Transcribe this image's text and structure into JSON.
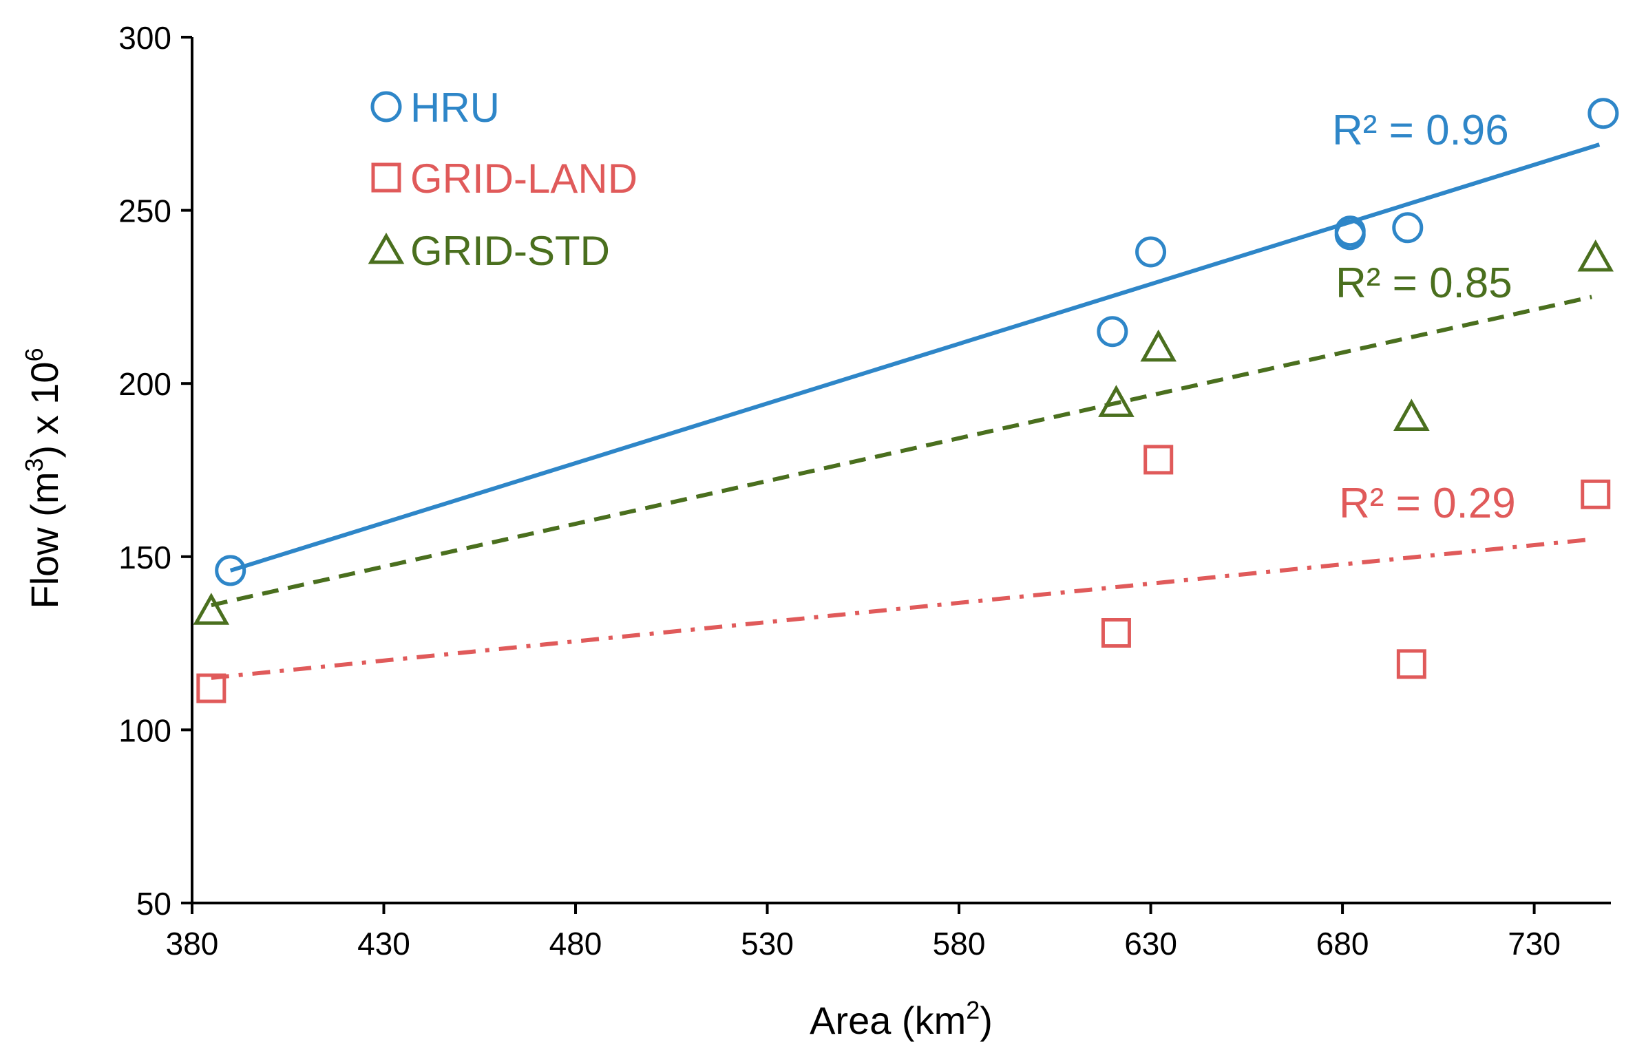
{
  "chart_data": {
    "type": "scatter",
    "xlabel": "Area (km",
    "xlabel_sup": "2",
    "xlabel_end": ")",
    "ylabel": "Flow (m",
    "ylabel_sup1": "3",
    "ylabel_mid": ") x 10",
    "ylabel_sup2": "6",
    "xlim": [
      380,
      750
    ],
    "ylim": [
      50,
      300
    ],
    "xticks": [
      380,
      430,
      480,
      530,
      580,
      630,
      680,
      730
    ],
    "yticks": [
      50,
      100,
      150,
      200,
      250,
      300
    ],
    "legend_position": "top-left",
    "series": [
      {
        "name": "HRU",
        "marker": "circle",
        "color": "#2E86C8",
        "line_style": "solid",
        "points": [
          [
            390,
            146
          ],
          [
            620,
            215
          ],
          [
            630,
            238
          ],
          [
            682,
            244
          ],
          [
            682,
            243
          ],
          [
            697,
            245
          ],
          [
            748,
            278
          ]
        ],
        "trend": {
          "x": [
            390,
            747
          ],
          "y": [
            146,
            269
          ]
        },
        "r2_label": "R² = 0.96"
      },
      {
        "name": "GRID-LAND",
        "marker": "square",
        "color": "#E05A5A",
        "line_style": "dashdot",
        "points": [
          [
            385,
            112
          ],
          [
            621,
            128
          ],
          [
            632,
            178
          ],
          [
            698,
            119
          ],
          [
            746,
            168
          ]
        ],
        "trend": {
          "x": [
            385,
            745
          ],
          "y": [
            115,
            155
          ]
        },
        "r2_label": "R² = 0.29"
      },
      {
        "name": "GRID-STD",
        "marker": "triangle",
        "color": "#4A6F1E",
        "line_style": "dashed",
        "points": [
          [
            385,
            134
          ],
          [
            621,
            194
          ],
          [
            632,
            210
          ],
          [
            698,
            190
          ],
          [
            746,
            236
          ]
        ],
        "trend": {
          "x": [
            385,
            745
          ],
          "y": [
            136,
            225
          ]
        },
        "r2_label": "R² = 0.85"
      }
    ]
  }
}
